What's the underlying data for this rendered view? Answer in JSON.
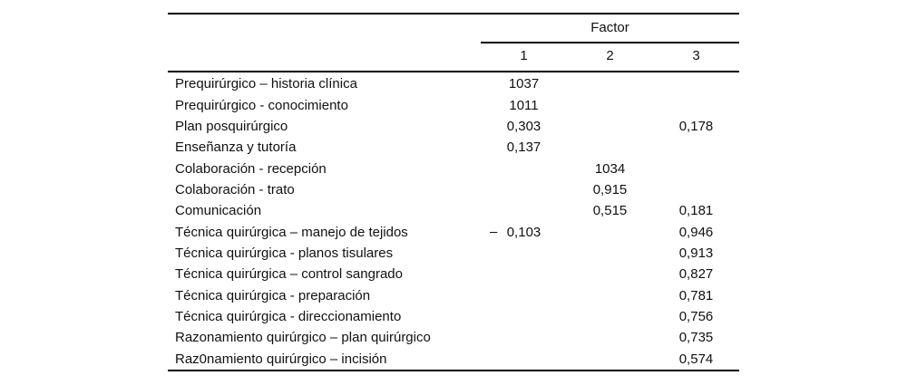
{
  "table": {
    "spanner": "Factor",
    "columns": [
      "1",
      "2",
      "3"
    ],
    "rows": [
      {
        "label": "Prequirúrgico – historia clínica",
        "f1": "1037",
        "f2": "",
        "f3": ""
      },
      {
        "label": "Prequirúrgico - conocimiento",
        "f1": "1011",
        "f2": "",
        "f3": ""
      },
      {
        "label": "Plan posquirúrgico",
        "f1": "0,303",
        "f2": "",
        "f3": "0,178"
      },
      {
        "label": "Enseñanza y tutoría",
        "f1": "0,137",
        "f2": "",
        "f3": ""
      },
      {
        "label": "Colaboración - recepción",
        "f1": "",
        "f2": "1034",
        "f3": ""
      },
      {
        "label": "Colaboración - trato",
        "f1": "",
        "f2": "0,915",
        "f3": ""
      },
      {
        "label": "Comunicación",
        "f1": "",
        "f2": "0,515",
        "f3": "0,181"
      },
      {
        "label": "Técnica quirúrgica – manejo de tejidos",
        "f1_sign": "–",
        "f1": "0,103",
        "f2": "",
        "f3": "0,946"
      },
      {
        "label": "Técnica quirúrgica - planos tisulares",
        "f1": "",
        "f2": "",
        "f3": "0,913"
      },
      {
        "label": "Técnica quirúrgica – control sangrado",
        "f1": "",
        "f2": "",
        "f3": "0,827"
      },
      {
        "label": "Técnica quirúrgica - preparación",
        "f1": "",
        "f2": "",
        "f3": "0,781"
      },
      {
        "label": "Técnica quirúrgica - direccionamiento",
        "f1": "",
        "f2": "",
        "f3": "0,756"
      },
      {
        "label": "Razonamiento quirúrgico – plan quirúrgico",
        "f1": "",
        "f2": "",
        "f3": "0,735"
      },
      {
        "label": "Raz0namiento quirúrgico – incisión",
        "f1": "",
        "f2": "",
        "f3": "0,574"
      }
    ],
    "colors": {
      "background": "#ffffff",
      "text": "#111111",
      "rule": "#000000"
    }
  }
}
